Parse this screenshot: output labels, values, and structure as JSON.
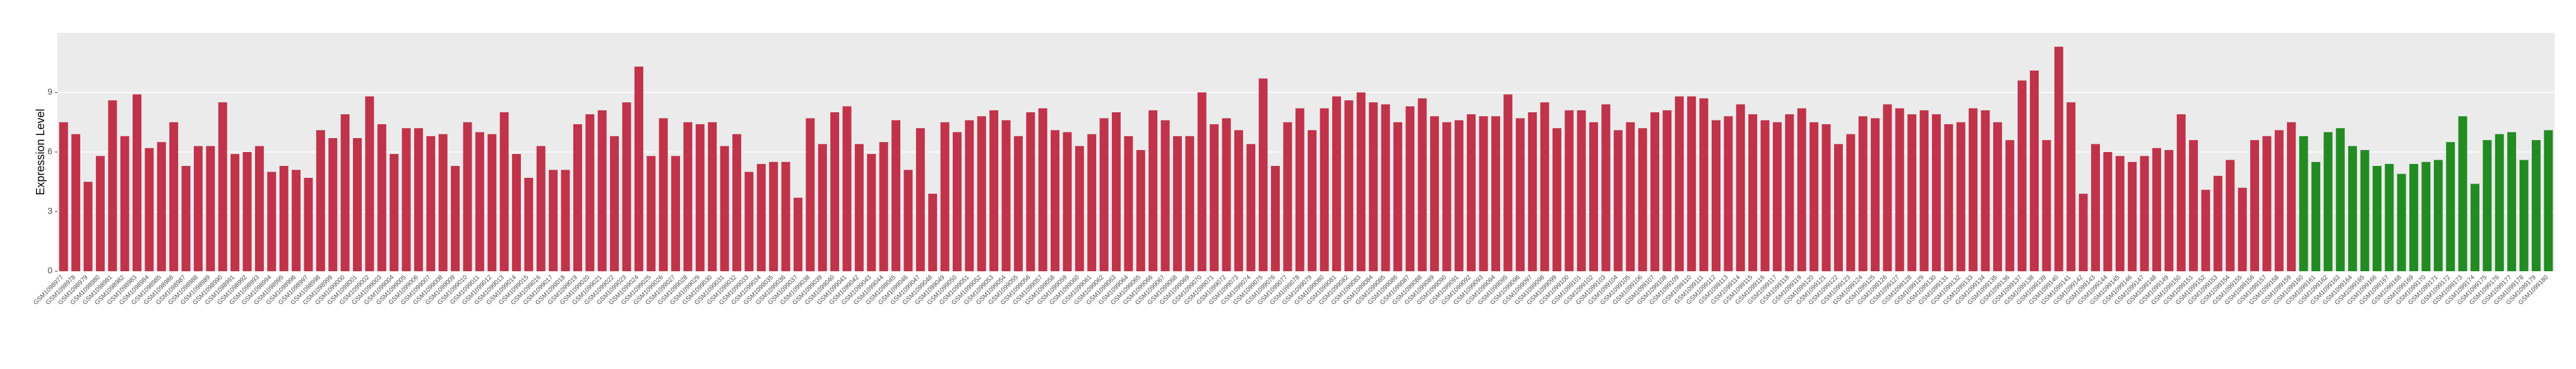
{
  "chart_data": {
    "type": "bar",
    "y_label": "Expression Level",
    "categories": [
      "GSM1098977",
      "GSM1098978",
      "GSM1098979",
      "GSM1098980",
      "GSM1098981",
      "GSM1098982",
      "GSM1098983",
      "GSM1098984",
      "GSM1098985",
      "GSM1098986",
      "GSM1098987",
      "GSM1098988",
      "GSM1098989",
      "GSM1098990",
      "GSM1098991",
      "GSM1098992",
      "GSM1098993",
      "GSM1098994",
      "GSM1098995",
      "GSM1098996",
      "GSM1098997",
      "GSM1098998",
      "GSM1098999",
      "GSM1099000",
      "GSM1099001",
      "GSM1099002",
      "GSM1099003",
      "GSM1099004",
      "GSM1099005",
      "GSM1099006",
      "GSM1099007",
      "GSM1099008",
      "GSM1099009",
      "GSM1099010",
      "GSM1099011",
      "GSM1099012",
      "GSM1099013",
      "GSM1099014",
      "GSM1099015",
      "GSM1099016",
      "GSM1099017",
      "GSM1099018",
      "GSM1099019",
      "GSM1099020",
      "GSM1099021",
      "GSM1099022",
      "GSM1099023",
      "GSM1099024",
      "GSM1099025",
      "GSM1099026",
      "GSM1099027",
      "GSM1099028",
      "GSM1099029",
      "GSM1099030",
      "GSM1099031",
      "GSM1099032",
      "GSM1099033",
      "GSM1099034",
      "GSM1099035",
      "GSM1099036",
      "GSM1099037",
      "GSM1099038",
      "GSM1099039",
      "GSM1099040",
      "GSM1099041",
      "GSM1099042",
      "GSM1099043",
      "GSM1099044",
      "GSM1099045",
      "GSM1099046",
      "GSM1099047",
      "GSM1099048",
      "GSM1099049",
      "GSM1099050",
      "GSM1099051",
      "GSM1099052",
      "GSM1099053",
      "GSM1099054",
      "GSM1099055",
      "GSM1099056",
      "GSM1099057",
      "GSM1099058",
      "GSM1099059",
      "GSM1099060",
      "GSM1099061",
      "GSM1099062",
      "GSM1099063",
      "GSM1099064",
      "GSM1099065",
      "GSM1099066",
      "GSM1099067",
      "GSM1099068",
      "GSM1099069",
      "GSM1099070",
      "GSM1099071",
      "GSM1099072",
      "GSM1099073",
      "GSM1099074",
      "GSM1099075",
      "GSM1099076",
      "GSM1099077",
      "GSM1099078",
      "GSM1099079",
      "GSM1099080",
      "GSM1099081",
      "GSM1099082",
      "GSM1099083",
      "GSM1099084",
      "GSM1099085",
      "GSM1099086",
      "GSM1099087",
      "GSM1099088",
      "GSM1099089",
      "GSM1099090",
      "GSM1099091",
      "GSM1099092",
      "GSM1099093",
      "GSM1099094",
      "GSM1099095",
      "GSM1099096",
      "GSM1099097",
      "GSM1099098",
      "GSM1099099",
      "GSM1099100",
      "GSM1099101",
      "GSM1099102",
      "GSM1099103",
      "GSM1099104",
      "GSM1099105",
      "GSM1099106",
      "GSM1099107",
      "GSM1099108",
      "GSM1099109",
      "GSM1099110",
      "GSM1099111",
      "GSM1099112",
      "GSM1099113",
      "GSM1099114",
      "GSM1099115",
      "GSM1099116",
      "GSM1099117",
      "GSM1099118",
      "GSM1099119",
      "GSM1099120",
      "GSM1099121",
      "GSM1099122",
      "GSM1099123",
      "GSM1099124",
      "GSM1099125",
      "GSM1099126",
      "GSM1099127",
      "GSM1099128",
      "GSM1099129",
      "GSM1099130",
      "GSM1099131",
      "GSM1099132",
      "GSM1099133",
      "GSM1099134",
      "GSM1099135",
      "GSM1099136",
      "GSM1099137",
      "GSM1099138",
      "GSM1099139",
      "GSM1099140",
      "GSM1099141",
      "GSM1099142",
      "GSM1099143",
      "GSM1099144",
      "GSM1099145",
      "GSM1099146",
      "GSM1099147",
      "GSM1099148",
      "GSM1099149",
      "GSM1099150",
      "GSM1099151",
      "GSM1099152",
      "GSM1099153",
      "GSM1099154",
      "GSM1099155",
      "GSM1099156",
      "GSM1099157",
      "GSM1099158",
      "GSM1099159",
      "GSM1099160",
      "GSM1099161",
      "GSM1099162",
      "GSM1099163",
      "GSM1099164",
      "GSM1099165",
      "GSM1099166",
      "GSM1099167",
      "GSM1099168",
      "GSM1099169",
      "GSM1099170",
      "GSM1099171",
      "GSM1099172",
      "GSM1099173",
      "GSM1099174",
      "GSM1099175",
      "GSM1099176",
      "GSM1099177",
      "GSM1099178",
      "GSM1099179",
      "GSM1099180"
    ],
    "values": [
      7.5,
      6.9,
      4.5,
      5.8,
      8.6,
      6.8,
      8.9,
      6.2,
      6.5,
      7.5,
      5.3,
      6.3,
      6.3,
      8.5,
      5.9,
      6.0,
      6.3,
      5.0,
      5.3,
      5.1,
      4.7,
      7.1,
      6.7,
      7.9,
      6.7,
      8.8,
      7.4,
      5.9,
      7.2,
      7.2,
      6.8,
      6.9,
      5.3,
      7.5,
      7.0,
      6.9,
      8.0,
      5.9,
      4.7,
      6.3,
      5.1,
      5.1,
      7.4,
      7.9,
      8.1,
      6.8,
      8.5,
      10.3,
      5.8,
      7.7,
      5.8,
      7.5,
      7.4,
      7.5,
      6.3,
      6.9,
      5.0,
      5.4,
      5.5,
      5.5,
      3.7,
      7.7,
      6.4,
      8.0,
      8.3,
      6.4,
      5.9,
      6.5,
      7.6,
      5.1,
      7.2,
      3.9,
      7.5,
      7.0,
      7.6,
      7.8,
      8.1,
      7.6,
      6.8,
      8.0,
      8.2,
      7.1,
      7.0,
      6.3,
      6.9,
      7.7,
      8.0,
      6.8,
      6.1,
      8.1,
      7.6,
      6.8,
      6.8,
      9.0,
      7.4,
      7.7,
      7.1,
      6.4,
      9.7,
      5.3,
      7.5,
      8.2,
      7.1,
      8.2,
      8.8,
      8.6,
      9.0,
      8.5,
      8.4,
      7.5,
      8.3,
      8.7,
      7.8,
      7.5,
      7.6,
      7.9,
      7.8,
      7.8,
      8.9,
      7.7,
      8.0,
      8.5,
      7.2,
      8.1,
      8.1,
      7.5,
      8.4,
      7.1,
      7.5,
      7.2,
      8.0,
      8.1,
      8.8,
      8.8,
      8.7,
      7.6,
      7.8,
      8.4,
      7.9,
      7.6,
      7.5,
      7.9,
      8.2,
      7.5,
      7.4,
      6.4,
      6.9,
      7.8,
      7.7,
      8.4,
      8.2,
      7.9,
      8.1,
      7.9,
      7.4,
      7.5,
      8.2,
      8.1,
      7.5,
      6.6,
      9.6,
      10.1,
      6.6,
      11.3,
      8.5,
      3.9,
      6.4,
      6.0,
      5.8,
      5.5,
      5.8,
      6.2,
      6.1,
      7.9,
      6.6,
      4.1,
      4.8,
      5.6,
      4.2,
      6.6,
      6.8,
      7.1,
      7.5,
      6.8,
      5.5,
      7.0,
      7.2,
      6.3,
      6.1,
      5.3,
      5.4,
      4.9,
      5.4,
      5.5,
      5.6,
      6.5,
      7.8,
      4.4,
      6.6,
      6.9,
      7.0,
      5.6,
      6.6,
      7.1
    ],
    "colors": [
      "#c0334a",
      "#c0334a",
      "#c0334a",
      "#c0334a",
      "#c0334a",
      "#c0334a",
      "#c0334a",
      "#c0334a",
      "#c0334a",
      "#c0334a",
      "#c0334a",
      "#c0334a",
      "#c0334a",
      "#c0334a",
      "#c0334a",
      "#c0334a",
      "#c0334a",
      "#c0334a",
      "#c0334a",
      "#c0334a",
      "#c0334a",
      "#c0334a",
      "#c0334a",
      "#c0334a",
      "#c0334a",
      "#c0334a",
      "#c0334a",
      "#c0334a",
      "#c0334a",
      "#c0334a",
      "#c0334a",
      "#c0334a",
      "#c0334a",
      "#c0334a",
      "#c0334a",
      "#c0334a",
      "#c0334a",
      "#c0334a",
      "#c0334a",
      "#c0334a",
      "#c0334a",
      "#c0334a",
      "#c0334a",
      "#c0334a",
      "#c0334a",
      "#c0334a",
      "#c0334a",
      "#c0334a",
      "#c0334a",
      "#c0334a",
      "#c0334a",
      "#c0334a",
      "#c0334a",
      "#c0334a",
      "#c0334a",
      "#c0334a",
      "#c0334a",
      "#c0334a",
      "#c0334a",
      "#c0334a",
      "#c0334a",
      "#c0334a",
      "#c0334a",
      "#c0334a",
      "#c0334a",
      "#c0334a",
      "#c0334a",
      "#c0334a",
      "#c0334a",
      "#c0334a",
      "#c0334a",
      "#c0334a",
      "#c0334a",
      "#c0334a",
      "#c0334a",
      "#c0334a",
      "#c0334a",
      "#c0334a",
      "#c0334a",
      "#c0334a",
      "#c0334a",
      "#c0334a",
      "#c0334a",
      "#c0334a",
      "#c0334a",
      "#c0334a",
      "#c0334a",
      "#c0334a",
      "#c0334a",
      "#c0334a",
      "#c0334a",
      "#c0334a",
      "#c0334a",
      "#c0334a",
      "#c0334a",
      "#c0334a",
      "#c0334a",
      "#c0334a",
      "#c0334a",
      "#c0334a",
      "#c0334a",
      "#c0334a",
      "#c0334a",
      "#c0334a",
      "#c0334a",
      "#c0334a",
      "#c0334a",
      "#c0334a",
      "#c0334a",
      "#c0334a",
      "#c0334a",
      "#c0334a",
      "#c0334a",
      "#c0334a",
      "#c0334a",
      "#c0334a",
      "#c0334a",
      "#c0334a",
      "#c0334a",
      "#c0334a",
      "#c0334a",
      "#c0334a",
      "#c0334a",
      "#c0334a",
      "#c0334a",
      "#c0334a",
      "#c0334a",
      "#c0334a",
      "#c0334a",
      "#c0334a",
      "#c0334a",
      "#c0334a",
      "#c0334a",
      "#c0334a",
      "#c0334a",
      "#c0334a",
      "#c0334a",
      "#c0334a",
      "#c0334a",
      "#c0334a",
      "#c0334a",
      "#c0334a",
      "#c0334a",
      "#c0334a",
      "#c0334a",
      "#c0334a",
      "#c0334a",
      "#c0334a",
      "#c0334a",
      "#c0334a",
      "#c0334a",
      "#c0334a",
      "#c0334a",
      "#c0334a",
      "#c0334a",
      "#c0334a",
      "#c0334a",
      "#c0334a",
      "#c0334a",
      "#c0334a",
      "#c0334a",
      "#c0334a",
      "#c0334a",
      "#c0334a",
      "#c0334a",
      "#c0334a",
      "#c0334a",
      "#c0334a",
      "#c0334a",
      "#c0334a",
      "#c0334a",
      "#c0334a",
      "#c0334a",
      "#c0334a",
      "#c0334a",
      "#c0334a",
      "#c0334a",
      "#c0334a",
      "#c0334a",
      "#c0334a",
      "#c0334a",
      "#c0334a",
      "#c0334a",
      "#228b22",
      "#228b22",
      "#228b22",
      "#228b22",
      "#228b22",
      "#228b22",
      "#228b22",
      "#228b22",
      "#228b22",
      "#228b22",
      "#228b22",
      "#228b22",
      "#228b22",
      "#228b22",
      "#228b22",
      "#228b22",
      "#228b22",
      "#228b22",
      "#228b22",
      "#228b22",
      "#228b22"
    ],
    "ylim": [
      0,
      12
    ],
    "yticks": [
      0,
      3,
      6,
      9
    ],
    "grid": true
  }
}
